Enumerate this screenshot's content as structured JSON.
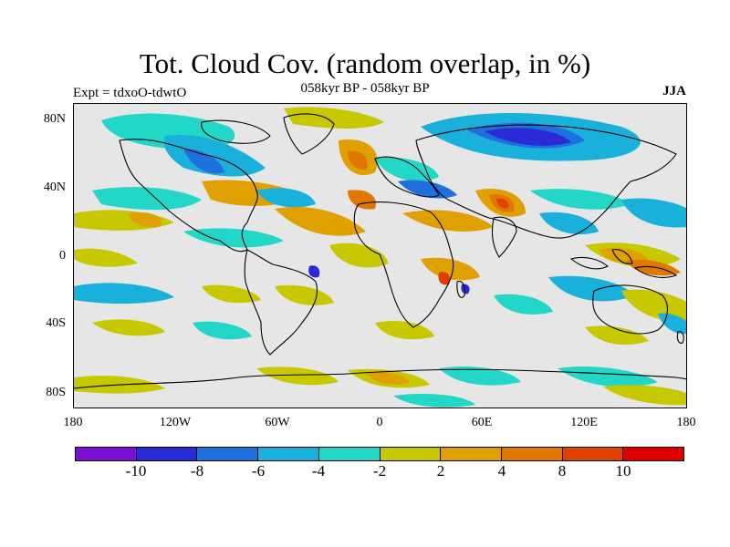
{
  "title": "Tot. Cloud Cov. (random overlap, in %)",
  "subtitle": "058kyr BP - 058kyr BP",
  "experiment_label": "Expt = tdxoO-tdwtO",
  "season_label": "JJA",
  "map": {
    "lat_ticks": [
      "80N",
      "40N",
      "0",
      "40S",
      "80S"
    ],
    "lon_ticks": [
      "180",
      "120W",
      "60W",
      "0",
      "60E",
      "120E",
      "180"
    ],
    "background_color": "#e6e6e6",
    "coastline_color": "#000000"
  },
  "colorbar": {
    "colors": [
      "#7a0fd6",
      "#2a2ad6",
      "#1f6fdc",
      "#1ab0dc",
      "#22d6c8",
      "#e6e6e6",
      "#c8c800",
      "#e0a000",
      "#e07800",
      "#e04000",
      "#e00000"
    ],
    "labels": [
      "-10",
      "-8",
      "-6",
      "-4",
      "-2",
      "2",
      "4",
      "8",
      "10"
    ]
  }
}
